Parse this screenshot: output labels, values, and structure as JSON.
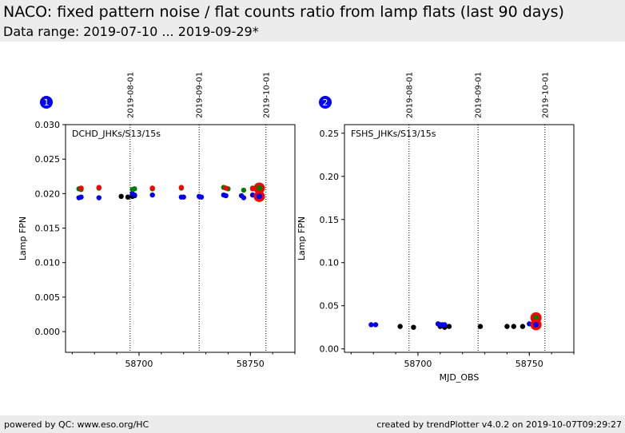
{
  "header": {
    "title": "NACO: fixed pattern noise / flat counts ratio from lamp flats (last 90 days)",
    "subtitle": "Data range: 2019-07-10 ... 2019-09-29*"
  },
  "footer": {
    "left": "powered by QC: www.eso.org/HC",
    "right": "created by trendPlotter v4.0.2 on 2019-10-07T09:29:27"
  },
  "colors": {
    "black": "#000000",
    "blue": "#0000ee",
    "green": "#007a00",
    "red": "#ff0000",
    "badge": "#0000ff"
  },
  "chart_data": [
    {
      "type": "scatter",
      "badge": "1",
      "panel_label": "DCHD_JHKs/S13/15s",
      "xlabel": "",
      "ylabel": "Lamp FPN",
      "xlim": [
        58667,
        58770
      ],
      "ylim": [
        -0.003,
        0.03
      ],
      "xticks": [
        58700,
        58750
      ],
      "yticks": [
        0.0,
        0.005,
        0.01,
        0.015,
        0.02,
        0.025,
        0.03
      ],
      "ytick_labels": [
        "0.000",
        "0.005",
        "0.010",
        "0.015",
        "0.020",
        "0.025",
        "0.030"
      ],
      "date_markers": [
        {
          "x": 58696,
          "label": "2019-08-01"
        },
        {
          "x": 58727,
          "label": "2019-09-01"
        },
        {
          "x": 58757,
          "label": "2019-10-01"
        }
      ],
      "series": [
        {
          "color": "black",
          "x": [
            58692,
            58695,
            58697,
            58698
          ],
          "y": [
            0.0196,
            0.0195,
            0.0196,
            0.0197
          ]
        },
        {
          "color": "blue",
          "x": [
            58673,
            58674,
            58682,
            58697,
            58698,
            58706,
            58719,
            58720,
            58727,
            58728,
            58738,
            58739,
            58746,
            58747,
            58751,
            58754
          ],
          "y": [
            0.0194,
            0.0195,
            0.0194,
            0.02,
            0.0198,
            0.0198,
            0.0195,
            0.0195,
            0.0196,
            0.0195,
            0.0198,
            0.0197,
            0.0197,
            0.0194,
            0.0198,
            0.0197
          ]
        },
        {
          "color": "green",
          "x": [
            58673,
            58674,
            58682,
            58697,
            58698,
            58706,
            58719,
            58738,
            58740,
            58747,
            58751
          ],
          "y": [
            0.0207,
            0.0206,
            0.0208,
            0.0206,
            0.0207,
            0.0207,
            0.0208,
            0.0209,
            0.0207,
            0.0205,
            0.0208
          ]
        },
        {
          "color": "red",
          "x": [
            58674,
            58682,
            58706,
            58719,
            58739,
            58751
          ],
          "y": [
            0.0208,
            0.0209,
            0.0208,
            0.0209,
            0.0208,
            0.0207
          ]
        }
      ],
      "latest": [
        {
          "x": 58754,
          "y": 0.0208,
          "fill": "green",
          "ring": "red"
        },
        {
          "x": 58754,
          "y": 0.0196,
          "fill": "blue",
          "ring": "red"
        }
      ]
    },
    {
      "type": "scatter",
      "badge": "2",
      "panel_label": "FSHS_JHKs/S13/15s",
      "xlabel": "MJD_OBS",
      "ylabel": "Lamp FPN",
      "xlim": [
        58667,
        58770
      ],
      "ylim": [
        -0.004,
        0.26
      ],
      "xticks": [
        58700,
        58750
      ],
      "yticks": [
        0.0,
        0.05,
        0.1,
        0.15,
        0.2,
        0.25
      ],
      "ytick_labels": [
        "0.00",
        "0.05",
        "0.10",
        "0.15",
        "0.20",
        "0.25"
      ],
      "date_markers": [
        {
          "x": 58696,
          "label": "2019-08-01"
        },
        {
          "x": 58727,
          "label": "2019-09-01"
        },
        {
          "x": 58757,
          "label": "2019-10-01"
        }
      ],
      "series": [
        {
          "color": "black",
          "x": [
            58692,
            58698,
            58710,
            58712,
            58714,
            58728,
            58740,
            58743,
            58747,
            58753
          ],
          "y": [
            0.026,
            0.025,
            0.026,
            0.025,
            0.026,
            0.026,
            0.026,
            0.026,
            0.026,
            0.027
          ]
        },
        {
          "color": "blue",
          "x": [
            58679,
            58681,
            58709,
            58710,
            58711,
            58712,
            58750
          ],
          "y": [
            0.028,
            0.028,
            0.029,
            0.028,
            0.028,
            0.028,
            0.029
          ]
        }
      ],
      "latest": [
        {
          "x": 58753,
          "y": 0.036,
          "fill": "green",
          "ring": "red"
        },
        {
          "x": 58753,
          "y": 0.028,
          "fill": "blue",
          "ring": "red"
        }
      ]
    }
  ]
}
